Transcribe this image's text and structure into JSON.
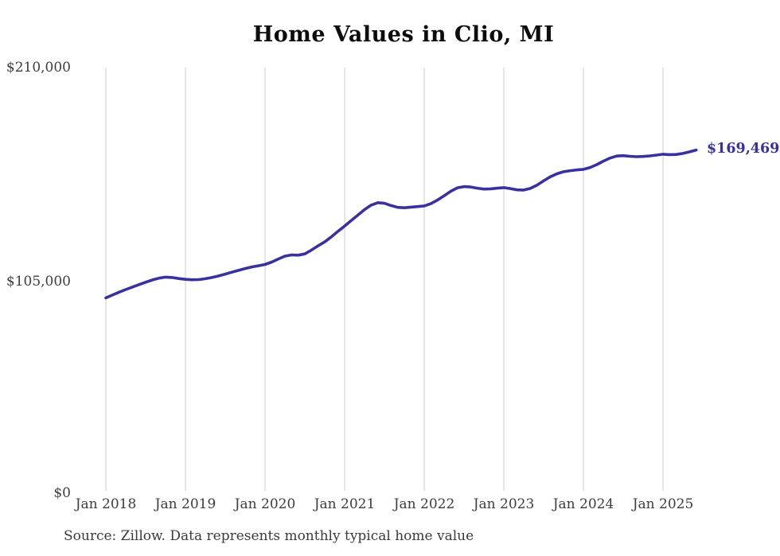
{
  "page": {
    "background": "#ffffff"
  },
  "chart": {
    "title": "Home Values in Clio, MI",
    "end_label": "$169,469",
    "source_note": "Source: Zillow. Data represents monthly typical home value",
    "line_color": "#38319f",
    "grid_color": "#cccccc",
    "tick_color": "#3d3d3d"
  },
  "chart_data": {
    "type": "line",
    "title": "Home Values in Clio, MI",
    "x_tick_labels": [
      "Jan 2018",
      "Jan 2019",
      "Jan 2020",
      "Jan 2021",
      "Jan 2022",
      "Jan 2023",
      "Jan 2024",
      "Jan 2025"
    ],
    "y_tick_labels": [
      "$0",
      "$105,000",
      "$210,000"
    ],
    "y_ticks": [
      0,
      105000,
      210000
    ],
    "ylim": [
      0,
      210000
    ],
    "grid": "vertical-only",
    "legend": "none",
    "x_start": "2018-01",
    "x_step_months": 1,
    "series": [
      {
        "name": "Monthly typical home value",
        "values": [
          96800,
          98200,
          99600,
          100900,
          102100,
          103300,
          104500,
          105600,
          106500,
          107000,
          106800,
          106300,
          105900,
          105700,
          105800,
          106200,
          106800,
          107600,
          108500,
          109400,
          110300,
          111200,
          112000,
          112600,
          113200,
          114400,
          115900,
          117300,
          117900,
          117800,
          118400,
          120300,
          122400,
          124300,
          126800,
          129500,
          132100,
          134800,
          137500,
          140200,
          142400,
          143600,
          143300,
          142200,
          141300,
          141100,
          141400,
          141700,
          142000,
          143100,
          144900,
          147000,
          149200,
          150900,
          151500,
          151300,
          150700,
          150300,
          150400,
          150700,
          151000,
          150500,
          149900,
          149800,
          150600,
          152200,
          154300,
          156300,
          157800,
          158800,
          159300,
          159700,
          160000,
          160900,
          162300,
          164000,
          165500,
          166500,
          166700,
          166400,
          166200,
          166300,
          166600,
          167000,
          167400,
          167200,
          167300,
          167800,
          168600,
          169469
        ]
      }
    ],
    "end_value": 169469,
    "end_value_label": "$169,469",
    "source": "Source: Zillow. Data represents monthly typical home value"
  }
}
